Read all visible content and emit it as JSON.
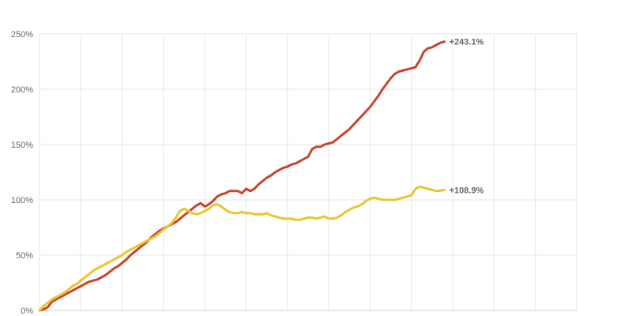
{
  "chart_data": {
    "type": "line",
    "xlabel": "",
    "ylabel": "",
    "ylim": [
      0,
      250
    ],
    "y_ticks": [
      "0%",
      "50%",
      "100%",
      "150%",
      "200%",
      "250%"
    ],
    "y_tick_values": [
      0,
      50,
      100,
      150,
      200,
      250
    ],
    "x_range": [
      0,
      130
    ],
    "x_gridlines": [
      0,
      10,
      20,
      30,
      40,
      50,
      60,
      70,
      80,
      90,
      100,
      110,
      120,
      130
    ],
    "grid": true,
    "colors": {
      "series_1": "#c8452c",
      "series_2": "#e8c630",
      "grid": "#e6e6e6",
      "text": "#666666"
    },
    "series": [
      {
        "color": "#c8452c",
        "end_label": "+243.1%",
        "points": [
          [
            0,
            0
          ],
          [
            1,
            1
          ],
          [
            2,
            3
          ],
          [
            3,
            8
          ],
          [
            4,
            10
          ],
          [
            5,
            12
          ],
          [
            6,
            14
          ],
          [
            7,
            16
          ],
          [
            8,
            18
          ],
          [
            9,
            20
          ],
          [
            10,
            22
          ],
          [
            11,
            24
          ],
          [
            12,
            26
          ],
          [
            13,
            27
          ],
          [
            14,
            28
          ],
          [
            15,
            30
          ],
          [
            16,
            32
          ],
          [
            17,
            35
          ],
          [
            18,
            38
          ],
          [
            19,
            40
          ],
          [
            20,
            43
          ],
          [
            21,
            46
          ],
          [
            22,
            50
          ],
          [
            23,
            53
          ],
          [
            24,
            56
          ],
          [
            25,
            59
          ],
          [
            26,
            62
          ],
          [
            27,
            66
          ],
          [
            28,
            69
          ],
          [
            29,
            72
          ],
          [
            30,
            74
          ],
          [
            31,
            76
          ],
          [
            32,
            78
          ],
          [
            33,
            80
          ],
          [
            34,
            83
          ],
          [
            35,
            86
          ],
          [
            36,
            89
          ],
          [
            37,
            92
          ],
          [
            38,
            95
          ],
          [
            39,
            97
          ],
          [
            40,
            94
          ],
          [
            41,
            96
          ],
          [
            42,
            99
          ],
          [
            43,
            103
          ],
          [
            44,
            105
          ],
          [
            45,
            106
          ],
          [
            46,
            108
          ],
          [
            47,
            108
          ],
          [
            48,
            108
          ],
          [
            49,
            106
          ],
          [
            50,
            110
          ],
          [
            51,
            108
          ],
          [
            52,
            110
          ],
          [
            53,
            114
          ],
          [
            54,
            117
          ],
          [
            55,
            120
          ],
          [
            56,
            122
          ],
          [
            57,
            125
          ],
          [
            58,
            127
          ],
          [
            59,
            129
          ],
          [
            60,
            130
          ],
          [
            61,
            132
          ],
          [
            62,
            133
          ],
          [
            63,
            135
          ],
          [
            64,
            137
          ],
          [
            65,
            139
          ],
          [
            66,
            146
          ],
          [
            67,
            148
          ],
          [
            68,
            148
          ],
          [
            69,
            150
          ],
          [
            70,
            151
          ],
          [
            71,
            152
          ],
          [
            72,
            155
          ],
          [
            73,
            158
          ],
          [
            74,
            161
          ],
          [
            75,
            164
          ],
          [
            76,
            168
          ],
          [
            77,
            172
          ],
          [
            78,
            176
          ],
          [
            79,
            180
          ],
          [
            80,
            184
          ],
          [
            81,
            189
          ],
          [
            82,
            194
          ],
          [
            83,
            200
          ],
          [
            84,
            205
          ],
          [
            85,
            210
          ],
          [
            86,
            214
          ],
          [
            87,
            216
          ],
          [
            88,
            217
          ],
          [
            89,
            218
          ],
          [
            90,
            219
          ],
          [
            91,
            220
          ],
          [
            92,
            226
          ],
          [
            93,
            234
          ],
          [
            94,
            237
          ],
          [
            95,
            238
          ],
          [
            96,
            240
          ],
          [
            97,
            242
          ],
          [
            98,
            243.1
          ]
        ]
      },
      {
        "color": "#e8c630",
        "end_label": "+108.9%",
        "points": [
          [
            0,
            0
          ],
          [
            1,
            4
          ],
          [
            2,
            7
          ],
          [
            3,
            10
          ],
          [
            4,
            12
          ],
          [
            5,
            14
          ],
          [
            6,
            16
          ],
          [
            7,
            19
          ],
          [
            8,
            22
          ],
          [
            9,
            24
          ],
          [
            10,
            27
          ],
          [
            11,
            30
          ],
          [
            12,
            33
          ],
          [
            13,
            36
          ],
          [
            14,
            38
          ],
          [
            15,
            40
          ],
          [
            16,
            42
          ],
          [
            17,
            44
          ],
          [
            18,
            46
          ],
          [
            19,
            48
          ],
          [
            20,
            50
          ],
          [
            21,
            53
          ],
          [
            22,
            55
          ],
          [
            23,
            57
          ],
          [
            24,
            59
          ],
          [
            25,
            61
          ],
          [
            26,
            63
          ],
          [
            27,
            65
          ],
          [
            28,
            67
          ],
          [
            29,
            70
          ],
          [
            30,
            73
          ],
          [
            31,
            76
          ],
          [
            32,
            79
          ],
          [
            33,
            84
          ],
          [
            34,
            90
          ],
          [
            35,
            92
          ],
          [
            36,
            90
          ],
          [
            37,
            88
          ],
          [
            38,
            87
          ],
          [
            39,
            88
          ],
          [
            40,
            90
          ],
          [
            41,
            92
          ],
          [
            42,
            95
          ],
          [
            43,
            96
          ],
          [
            44,
            94
          ],
          [
            45,
            91
          ],
          [
            46,
            89
          ],
          [
            47,
            88
          ],
          [
            48,
            88
          ],
          [
            49,
            89
          ],
          [
            50,
            88
          ],
          [
            51,
            88
          ],
          [
            52,
            87
          ],
          [
            53,
            87
          ],
          [
            54,
            87
          ],
          [
            55,
            88
          ],
          [
            56,
            86
          ],
          [
            57,
            85
          ],
          [
            58,
            84
          ],
          [
            59,
            83
          ],
          [
            60,
            83
          ],
          [
            61,
            83
          ],
          [
            62,
            82
          ],
          [
            63,
            82
          ],
          [
            64,
            83
          ],
          [
            65,
            84
          ],
          [
            66,
            84
          ],
          [
            67,
            83
          ],
          [
            68,
            84
          ],
          [
            69,
            85
          ],
          [
            70,
            83
          ],
          [
            71,
            83
          ],
          [
            72,
            84
          ],
          [
            73,
            86
          ],
          [
            74,
            89
          ],
          [
            75,
            91
          ],
          [
            76,
            93
          ],
          [
            77,
            94
          ],
          [
            78,
            96
          ],
          [
            79,
            99
          ],
          [
            80,
            101
          ],
          [
            81,
            102
          ],
          [
            82,
            101
          ],
          [
            83,
            100
          ],
          [
            84,
            100
          ],
          [
            85,
            100
          ],
          [
            86,
            100
          ],
          [
            87,
            101
          ],
          [
            88,
            102
          ],
          [
            89,
            103
          ],
          [
            90,
            104
          ],
          [
            91,
            110
          ],
          [
            92,
            112
          ],
          [
            93,
            111
          ],
          [
            94,
            110
          ],
          [
            95,
            109
          ],
          [
            96,
            108
          ],
          [
            97,
            108.5
          ],
          [
            98,
            108.9
          ]
        ]
      }
    ]
  }
}
